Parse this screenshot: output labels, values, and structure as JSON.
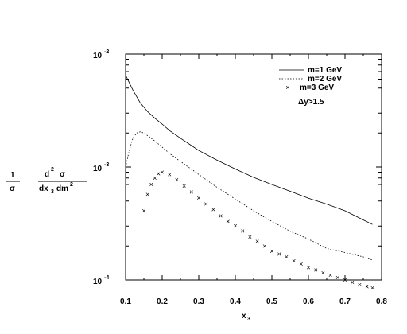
{
  "chart_data": {
    "type": "line",
    "title": "",
    "xlabel": {
      "main": "x",
      "sub": "3"
    },
    "ylabel": {
      "left_num": "1",
      "left_den": "σ",
      "num_main": "d",
      "num_sup": "2",
      "num_after": "σ",
      "den_a": "dx",
      "den_sub": "3",
      "den_b": "dm",
      "den_sup": "2"
    },
    "xlim": [
      0.1,
      0.8
    ],
    "ylim": [
      0.0001,
      0.01
    ],
    "yscale": "log",
    "grid": false,
    "legend_position": "top-right",
    "x_ticks": [
      "0.1",
      "0.2",
      "0.3",
      "0.4",
      "0.5",
      "0.6",
      "0.7",
      "0.8"
    ],
    "y_ticks": [
      {
        "base": "10",
        "exp": "-2",
        "value": 0.01
      },
      {
        "base": "10",
        "exp": "-3",
        "value": 0.001
      },
      {
        "base": "10",
        "exp": "-4",
        "value": 0.0001
      }
    ],
    "annotation": "Δy>1.5",
    "series": [
      {
        "name": "m=1 GeV",
        "style": "solid",
        "x": [
          0.1,
          0.12,
          0.14,
          0.16,
          0.18,
          0.2,
          0.22,
          0.25,
          0.28,
          0.3,
          0.35,
          0.4,
          0.45,
          0.5,
          0.55,
          0.6,
          0.65,
          0.7,
          0.75,
          0.775
        ],
        "y": [
          0.0065,
          0.0048,
          0.0037,
          0.0031,
          0.0027,
          0.0024,
          0.0021,
          0.0018,
          0.00155,
          0.0014,
          0.00115,
          0.00096,
          0.00081,
          0.0007,
          0.00061,
          0.00053,
          0.00047,
          0.00041,
          0.00034,
          0.00031
        ]
      },
      {
        "name": "m=2 GeV",
        "style": "dotted",
        "x": [
          0.1,
          0.11,
          0.12,
          0.13,
          0.14,
          0.15,
          0.16,
          0.18,
          0.2,
          0.22,
          0.25,
          0.3,
          0.35,
          0.4,
          0.45,
          0.5,
          0.55,
          0.6,
          0.65,
          0.7,
          0.75,
          0.775
        ],
        "y": [
          0.001,
          0.0014,
          0.0018,
          0.002,
          0.00205,
          0.002,
          0.0019,
          0.0017,
          0.0015,
          0.00132,
          0.00112,
          0.00086,
          0.00066,
          0.00052,
          0.00041,
          0.00033,
          0.00027,
          0.00023,
          0.00019,
          0.000175,
          0.00016,
          0.00015
        ]
      },
      {
        "name": "m=3 GeV",
        "style": "cross",
        "x": [
          0.15,
          0.16,
          0.17,
          0.18,
          0.19,
          0.2,
          0.22,
          0.24,
          0.26,
          0.28,
          0.3,
          0.32,
          0.34,
          0.36,
          0.38,
          0.4,
          0.42,
          0.44,
          0.46,
          0.48,
          0.5,
          0.52,
          0.54,
          0.56,
          0.58,
          0.6,
          0.62,
          0.64,
          0.66,
          0.68,
          0.7,
          0.72,
          0.74,
          0.76,
          0.775
        ],
        "y": [
          0.00041,
          0.00057,
          0.0007,
          0.0008,
          0.00087,
          0.0009,
          0.00086,
          0.00077,
          0.00068,
          0.0006,
          0.00053,
          0.00047,
          0.00042,
          0.00037,
          0.00033,
          0.0003,
          0.00027,
          0.00024,
          0.00022,
          0.0002,
          0.00018,
          0.00017,
          0.00016,
          0.000148,
          0.000138,
          0.000129,
          0.000122,
          0.000116,
          0.00011,
          0.000105,
          0.0001,
          9.5e-05,
          9.1e-05,
          8.7e-05,
          8.5e-05
        ]
      }
    ]
  }
}
